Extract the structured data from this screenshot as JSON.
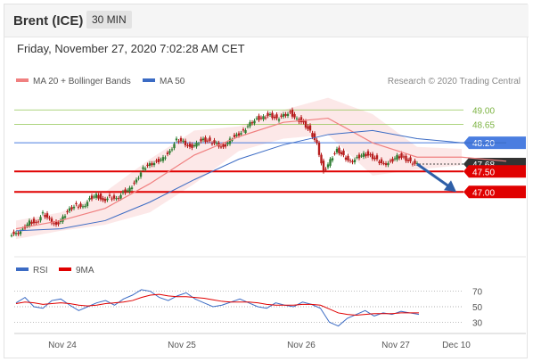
{
  "header": {
    "symbol": "Brent (ICE)",
    "timeframe": "30 MIN"
  },
  "datetime": "Friday, November 27, 2020 7:02:28 AM CET",
  "legend": {
    "ma20_label": "MA 20 + Bollinger Bands",
    "ma50_label": "MA 50",
    "credit": "Research © 2020 Trading Central",
    "rsi_label": "RSI",
    "rsi_ma_label": "9MA"
  },
  "colors": {
    "ma20": "#f08080",
    "ma50": "#3b6bc4",
    "candle_up": "#2e7d32",
    "candle_down": "#b71c1c",
    "resistance": "#8bc34a",
    "support": "#e00000",
    "pivot": "#4a7de0",
    "forecast_arrow": "#2e5fa8"
  },
  "chart_data": [
    {
      "type": "candlestick",
      "title": "Brent (ICE) 30 MIN",
      "x_ticks": [
        "Nov 24",
        "Nov 25",
        "Nov 26",
        "Nov 27",
        "Dec 10"
      ],
      "ylim": [
        45.7,
        49.4
      ],
      "levels": [
        {
          "value": "49.00",
          "kind": "resistance"
        },
        {
          "value": "48.65",
          "kind": "resistance"
        },
        {
          "value": "48.20",
          "kind": "pivot"
        },
        {
          "value": "47.68",
          "kind": "last-price"
        },
        {
          "value": "47.50",
          "kind": "support"
        },
        {
          "value": "47.00",
          "kind": "support"
        }
      ],
      "close_path": [
        [
          0,
          46.0
        ],
        [
          6,
          46.1
        ],
        [
          12,
          46.3
        ],
        [
          18,
          46.25
        ],
        [
          24,
          46.5
        ],
        [
          30,
          46.35
        ],
        [
          36,
          46.2
        ],
        [
          42,
          46.4
        ],
        [
          48,
          46.6
        ],
        [
          54,
          46.7
        ],
        [
          60,
          46.65
        ],
        [
          66,
          46.85
        ],
        [
          72,
          46.95
        ],
        [
          78,
          46.8
        ],
        [
          84,
          46.9
        ],
        [
          90,
          46.85
        ],
        [
          96,
          47.0
        ],
        [
          102,
          47.1
        ],
        [
          108,
          47.3
        ],
        [
          114,
          47.6
        ],
        [
          120,
          47.7
        ],
        [
          126,
          47.75
        ],
        [
          132,
          47.85
        ],
        [
          138,
          48.0
        ],
        [
          144,
          48.3
        ],
        [
          150,
          48.25
        ],
        [
          156,
          48.1
        ],
        [
          162,
          48.2
        ],
        [
          168,
          48.3
        ],
        [
          174,
          48.25
        ],
        [
          180,
          48.2
        ],
        [
          186,
          48.1
        ],
        [
          192,
          48.3
        ],
        [
          198,
          48.4
        ],
        [
          204,
          48.5
        ],
        [
          210,
          48.7
        ],
        [
          216,
          48.8
        ],
        [
          222,
          48.85
        ],
        [
          228,
          48.9
        ],
        [
          234,
          48.8
        ],
        [
          240,
          48.9
        ],
        [
          246,
          48.95
        ],
        [
          252,
          48.8
        ],
        [
          258,
          48.7
        ],
        [
          264,
          48.5
        ],
        [
          270,
          48.2
        ],
        [
          276,
          47.5
        ],
        [
          282,
          47.8
        ],
        [
          288,
          48.05
        ],
        [
          294,
          47.9
        ],
        [
          300,
          47.75
        ],
        [
          306,
          47.85
        ],
        [
          312,
          47.95
        ],
        [
          318,
          47.9
        ],
        [
          324,
          47.8
        ],
        [
          330,
          47.7
        ],
        [
          336,
          47.75
        ],
        [
          342,
          47.9
        ],
        [
          348,
          47.85
        ],
        [
          354,
          47.75
        ],
        [
          360,
          47.7
        ]
      ],
      "ma50_path": [
        [
          0,
          46.05
        ],
        [
          40,
          46.1
        ],
        [
          80,
          46.3
        ],
        [
          120,
          46.75
        ],
        [
          160,
          47.3
        ],
        [
          200,
          47.8
        ],
        [
          240,
          48.15
        ],
        [
          280,
          48.4
        ],
        [
          320,
          48.5
        ],
        [
          360,
          48.3
        ],
        [
          400,
          48.2
        ],
        [
          440,
          48.2
        ]
      ],
      "ma20_path": [
        [
          0,
          46.1
        ],
        [
          40,
          46.3
        ],
        [
          80,
          46.6
        ],
        [
          120,
          47.2
        ],
        [
          160,
          47.9
        ],
        [
          200,
          48.35
        ],
        [
          240,
          48.7
        ],
        [
          280,
          48.8
        ],
        [
          320,
          48.2
        ],
        [
          360,
          47.85
        ],
        [
          400,
          47.85
        ],
        [
          440,
          47.75
        ]
      ],
      "bollinger_upper": [
        [
          0,
          46.3
        ],
        [
          40,
          46.5
        ],
        [
          80,
          47.0
        ],
        [
          120,
          47.8
        ],
        [
          160,
          48.5
        ],
        [
          200,
          48.6
        ],
        [
          240,
          49.0
        ],
        [
          280,
          49.3
        ],
        [
          320,
          48.9
        ],
        [
          360,
          48.1
        ],
        [
          400,
          48.05
        ]
      ],
      "bollinger_lower": [
        [
          0,
          45.85
        ],
        [
          40,
          46.05
        ],
        [
          80,
          46.2
        ],
        [
          120,
          46.5
        ],
        [
          160,
          47.2
        ],
        [
          200,
          48.0
        ],
        [
          240,
          48.3
        ],
        [
          280,
          48.4
        ],
        [
          320,
          47.4
        ],
        [
          360,
          47.55
        ],
        [
          400,
          47.65
        ]
      ],
      "forecast_target": "47.00"
    },
    {
      "type": "line",
      "title": "RSI",
      "y_ticks": [
        "70",
        "50",
        "30"
      ],
      "ylim": [
        20,
        80
      ],
      "series": [
        {
          "name": "RSI",
          "values": [
            55,
            62,
            50,
            48,
            58,
            60,
            52,
            45,
            50,
            55,
            58,
            52,
            60,
            65,
            72,
            70,
            62,
            58,
            64,
            68,
            60,
            55,
            50,
            52,
            56,
            60,
            55,
            50,
            48,
            55,
            52,
            50,
            56,
            53,
            48,
            30,
            25,
            35,
            40,
            45,
            38,
            42,
            40,
            44,
            42,
            40
          ]
        },
        {
          "name": "9MA",
          "values": [
            54,
            56,
            55,
            53,
            54,
            55,
            54,
            52,
            51,
            52,
            54,
            55,
            56,
            58,
            62,
            65,
            66,
            64,
            63,
            63,
            62,
            61,
            59,
            57,
            56,
            56,
            56,
            55,
            53,
            52,
            52,
            52,
            53,
            53,
            52,
            47,
            42,
            40,
            39,
            40,
            41,
            41,
            41,
            42,
            42,
            42
          ]
        }
      ]
    }
  ]
}
